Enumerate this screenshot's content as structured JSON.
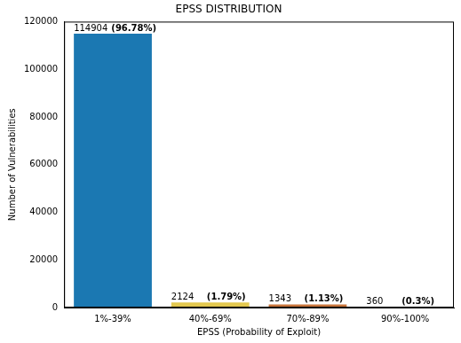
{
  "chart_data": {
    "type": "bar",
    "title": "EPSS DISTRIBUTION",
    "x_label": "EPSS (Probability of Exploit)",
    "y_label": "Number of Vulnerabilities",
    "categories": [
      "1%-39%",
      "40%-69%",
      "70%-89%",
      "90%-100%"
    ],
    "values": [
      114904,
      2124,
      1343,
      360
    ],
    "percent_labels": [
      "(96.78%)",
      "(1.79%)",
      "(1.13%)",
      "(0.3%)"
    ],
    "colors": [
      "#1b78b2",
      "#e3c84e",
      "#c8743a",
      "#c0392b"
    ],
    "ylim": [
      0,
      120000
    ],
    "yticks": [
      0,
      20000,
      40000,
      60000,
      80000,
      100000,
      120000
    ],
    "grid": false,
    "data_labels": true
  }
}
